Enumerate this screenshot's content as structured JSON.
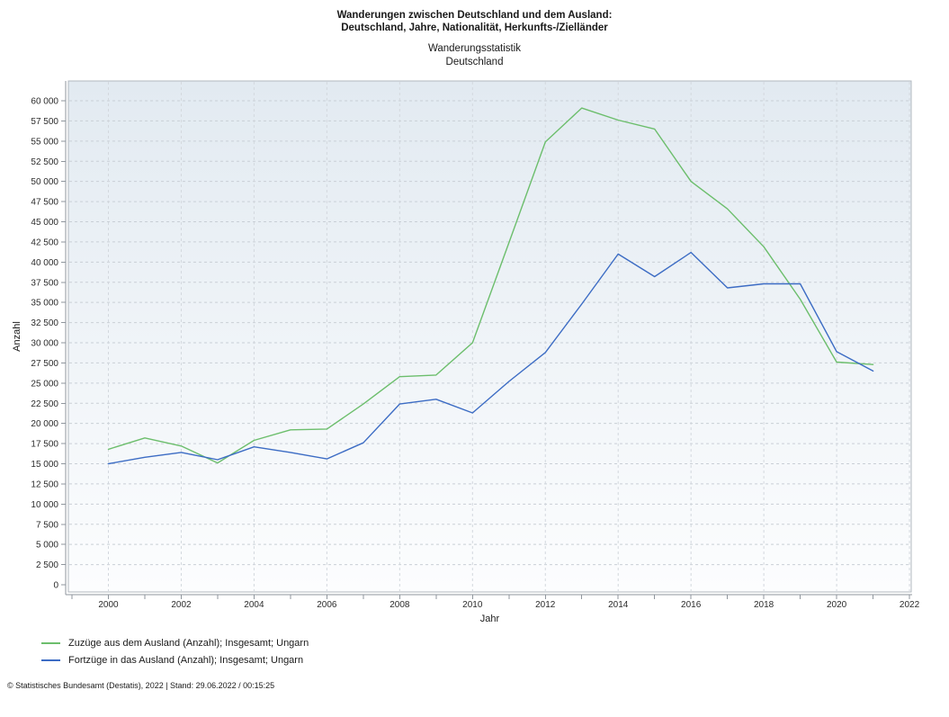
{
  "header": {
    "title_line1": "Wanderungen zwischen Deutschland und dem Ausland:",
    "title_line2": "Deutschland, Jahre, Nationalität, Herkunfts-/Zielländer",
    "subtitle_line1": "Wanderungsstatistik",
    "subtitle_line2": "Deutschland"
  },
  "chart_data": {
    "type": "line",
    "title": "Wanderungen zwischen Deutschland und dem Ausland",
    "xlabel": "Jahr",
    "ylabel": "Anzahl",
    "x": [
      2000,
      2001,
      2002,
      2003,
      2004,
      2005,
      2006,
      2007,
      2008,
      2009,
      2010,
      2011,
      2012,
      2013,
      2014,
      2015,
      2016,
      2017,
      2018,
      2019,
      2020,
      2021
    ],
    "series": [
      {
        "name": "Zuzüge aus dem Ausland (Anzahl); Insgesamt; Ungarn",
        "color": "#6cbe6c",
        "values": [
          16800,
          18200,
          17200,
          15100,
          17900,
          19200,
          19300,
          22400,
          25800,
          26000,
          30000,
          42400,
          54900,
          59100,
          57600,
          56500,
          50000,
          46600,
          41900,
          35400,
          27600,
          27300
        ]
      },
      {
        "name": "Fortzüge in das Ausland (Anzahl); Insgesamt; Ungarn",
        "color": "#3c6cc4",
        "values": [
          15000,
          15800,
          16400,
          15500,
          17100,
          16400,
          15600,
          17600,
          22400,
          23000,
          21300,
          25200,
          28800,
          34800,
          41000,
          38200,
          41200,
          36800,
          37300,
          37300,
          28900,
          26500
        ]
      }
    ],
    "xlim": [
      1998.9,
      2022.1
    ],
    "ylim": [
      0,
      62450
    ],
    "x_tick_labels": [
      2000,
      2002,
      2004,
      2006,
      2008,
      2010,
      2012,
      2014,
      2016,
      2018,
      2020,
      2022
    ],
    "x_minor_ticks_from": 1999,
    "x_minor_ticks_to": 2022,
    "y_ticks": [
      0,
      2500,
      5000,
      7500,
      10000,
      12500,
      15000,
      17500,
      20000,
      22500,
      25000,
      27500,
      30000,
      32500,
      35000,
      37500,
      40000,
      42500,
      45000,
      47500,
      50000,
      52500,
      55000,
      57500,
      60000
    ],
    "grid": true,
    "legend_position": "bottom-left",
    "colors": {
      "plot_bg_top": "#e2eaf1",
      "plot_bg_bottom": "#fcfdfe",
      "panel_border": "#b2b8bf",
      "h_grid": "#c9cfd6",
      "v_grid": "#d3d8de",
      "axis": "#8f969d",
      "tick_text": "#2b2b2b"
    }
  },
  "footer": {
    "text": "© Statistisches Bundesamt (Destatis), 2022 | Stand: 29.06.2022 / 00:15:25"
  }
}
